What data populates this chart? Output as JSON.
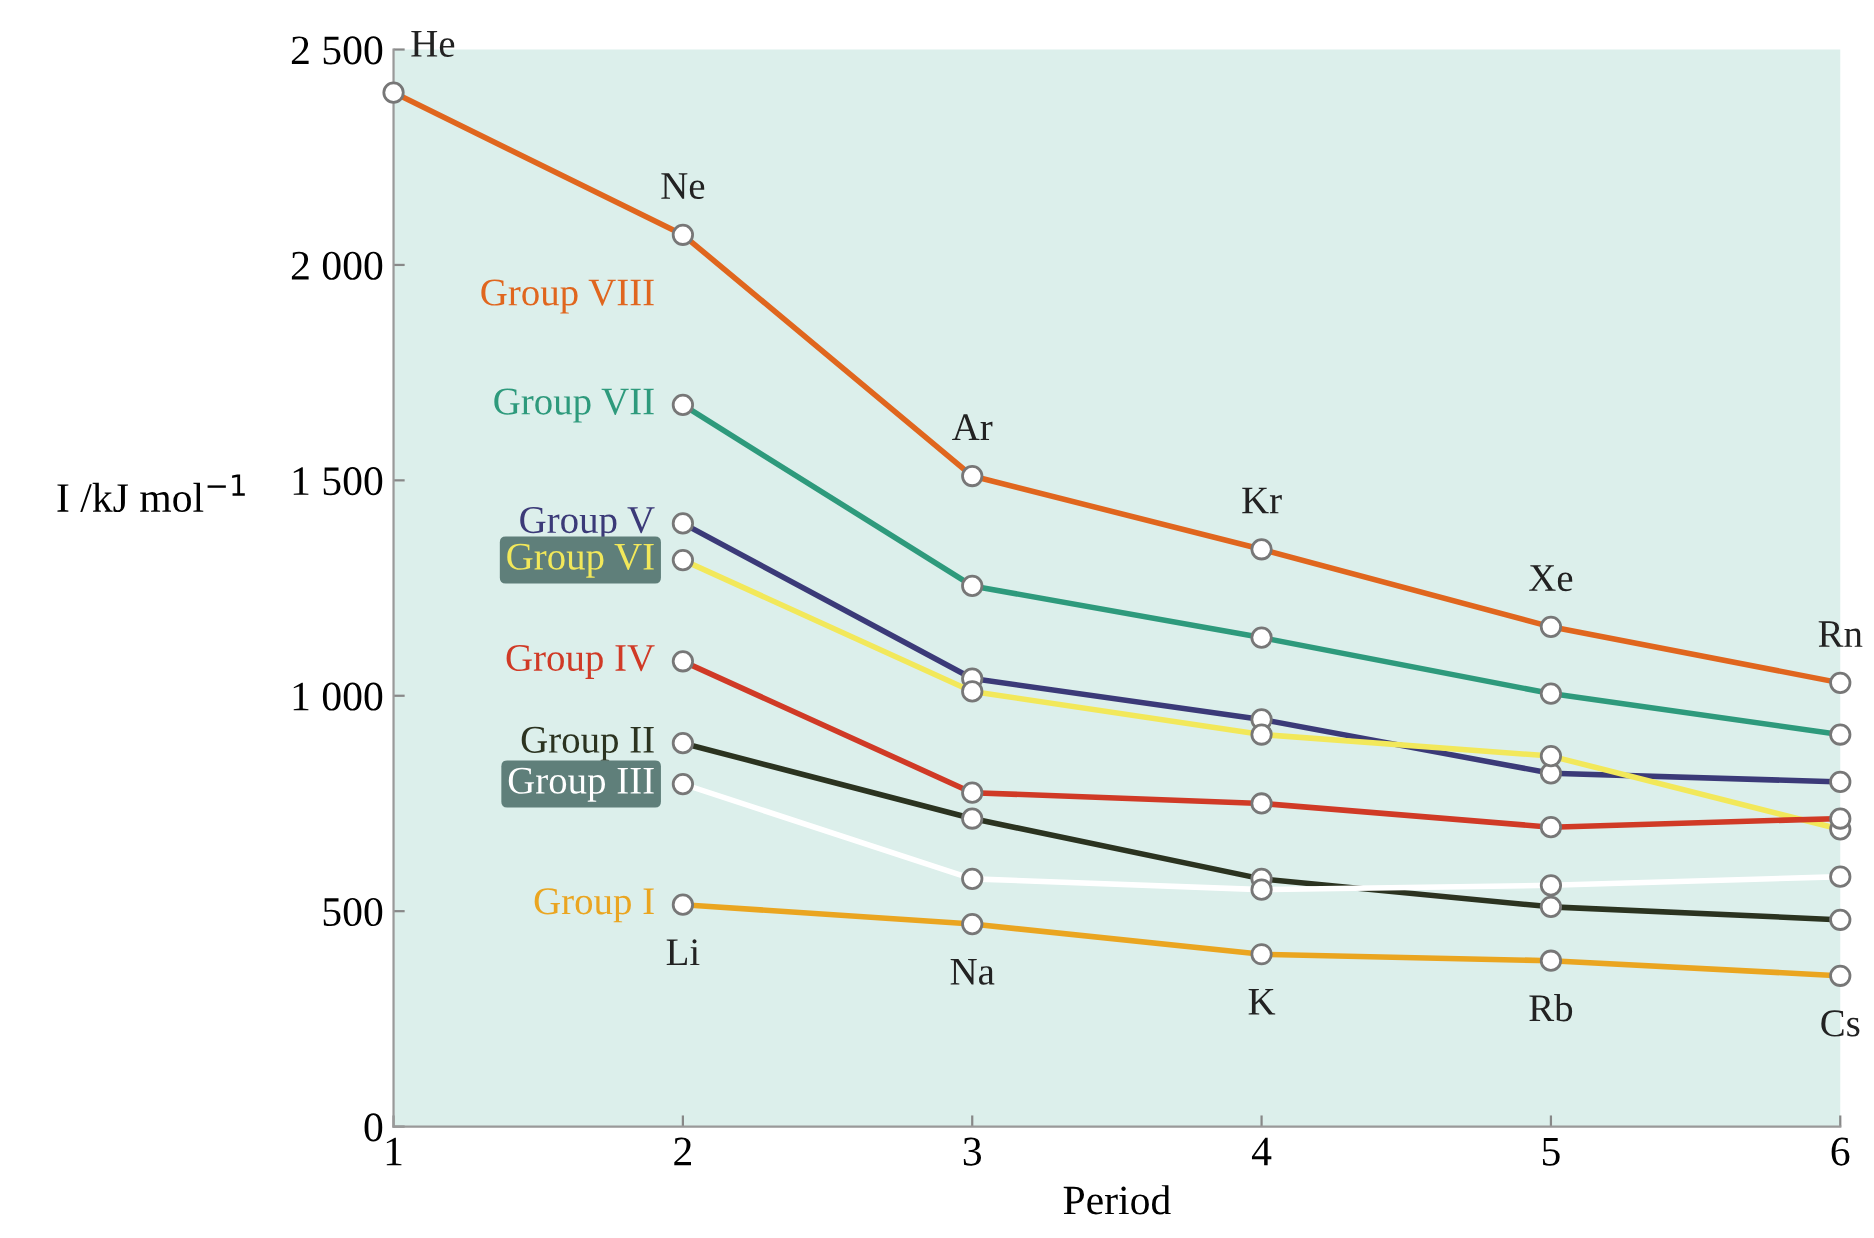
{
  "chart_data": {
    "type": "line",
    "xlabel": "Period",
    "ylabel": "I /kJ mol$^{−1}$",
    "x": [
      1,
      2,
      3,
      4,
      5,
      6
    ],
    "xlim": [
      1,
      6
    ],
    "xticks": [
      1,
      2,
      3,
      4,
      5,
      6
    ],
    "ylim": [
      0,
      2500
    ],
    "yticks": [
      0,
      500,
      {
        "value": 1000,
        "label": "1 000"
      },
      {
        "value": 1500,
        "label": "1 500"
      },
      {
        "value": 2000,
        "label": "2 000"
      },
      {
        "value": 2500,
        "label": "2 500"
      }
    ],
    "grid": false,
    "legend": false,
    "marker": "circle",
    "line_style": "solid",
    "series": [
      {
        "name": "Group VIII",
        "color": "#e0661e",
        "values": [
          2400,
          2070,
          1510,
          1340,
          1160,
          1030
        ]
      },
      {
        "name": "Group VII",
        "color": "#2e9a7c",
        "values": [
          null,
          1675,
          1255,
          1135,
          1005,
          910
        ]
      },
      {
        "name": "Group V",
        "color": "#3b3a78",
        "values": [
          null,
          1400,
          1040,
          945,
          820,
          800
        ]
      },
      {
        "name": "Group VI",
        "color": "#f2e85a",
        "values": [
          null,
          1315,
          1010,
          910,
          860,
          690
        ]
      },
      {
        "name": "Group IV",
        "color": "#d03a26",
        "values": [
          null,
          1080,
          775,
          750,
          695,
          715
        ]
      },
      {
        "name": "Group II",
        "color": "#2b3320",
        "values": [
          null,
          890,
          715,
          575,
          510,
          480
        ]
      },
      {
        "name": "Group III",
        "color": "#ffffff",
        "values": [
          null,
          795,
          575,
          550,
          560,
          580
        ]
      },
      {
        "name": "Group I",
        "color": "#eaa520",
        "values": [
          null,
          515,
          470,
          400,
          385,
          350
        ]
      }
    ],
    "annotations": [
      {
        "text": "He",
        "x": 1,
        "y": 2400
      },
      {
        "text": "Ne",
        "x": 2,
        "y": 2070
      },
      {
        "text": "Ar",
        "x": 3,
        "y": 1510
      },
      {
        "text": "Kr",
        "x": 4,
        "y": 1340
      },
      {
        "text": "Xe",
        "x": 5,
        "y": 1160
      },
      {
        "text": "Rn",
        "x": 6,
        "y": 1030
      },
      {
        "text": "Li",
        "x": 2,
        "y": 515
      },
      {
        "text": "Na",
        "x": 3,
        "y": 470
      },
      {
        "text": "K",
        "x": 4,
        "y": 400
      },
      {
        "text": "Rb",
        "x": 5,
        "y": 385
      },
      {
        "text": "Cs",
        "x": 6,
        "y": 350
      }
    ]
  }
}
